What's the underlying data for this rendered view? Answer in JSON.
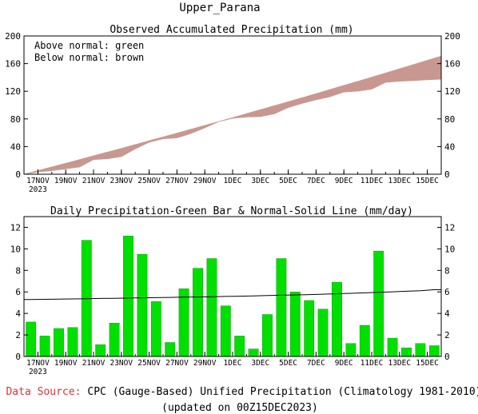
{
  "header": {
    "title": "Upper_Parana"
  },
  "footer": {
    "source_label": "Data Source:",
    "source_text": "CPC (Gauge-Based) Unified Precipitation (Climatology 1981-2010)",
    "updated": "(updated on 00Z15DEC2023)"
  },
  "colors": {
    "above_normal": "#c89890",
    "bar": "#00e000",
    "source_label": "#e03030",
    "axis": "#000000"
  },
  "chart_data": [
    {
      "type": "area",
      "title": "Observed Accumulated Precipitation (mm)",
      "annotations": [
        "Above normal: green",
        "Below normal: brown"
      ],
      "xlabel": "",
      "ylabel": "",
      "x_start_date": "2023-11-16",
      "x_tick_labels": [
        "17NOV",
        "19NOV",
        "21NOV",
        "23NOV",
        "25NOV",
        "27NOV",
        "29NOV",
        "1DEC",
        "3DEC",
        "5DEC",
        "7DEC",
        "9DEC",
        "11DEC",
        "13DEC",
        "15DEC"
      ],
      "x_tick_year": "2023",
      "ylim": [
        0,
        200
      ],
      "yticks": [
        0,
        40,
        80,
        120,
        160,
        200
      ],
      "grid": false,
      "series": [
        {
          "name": "Observed",
          "values": [
            3.2,
            5.1,
            7.7,
            10.4,
            21.2,
            22.3,
            25.4,
            36.6,
            46.1,
            51.2,
            52.5,
            58.8,
            67.0,
            76.1,
            80.8,
            82.7,
            83.4,
            87.3,
            96.4,
            102.4,
            107.6,
            112.0,
            118.9,
            120.1,
            123.0,
            132.8,
            134.5,
            135.3,
            136.5,
            137.5
          ]
        },
        {
          "name": "Normal",
          "values": [
            5.3,
            10.6,
            15.9,
            21.3,
            26.7,
            32.1,
            37.5,
            43.0,
            48.5,
            54.0,
            59.5,
            65.1,
            70.7,
            76.3,
            82.0,
            87.7,
            93.4,
            99.2,
            105.0,
            110.8,
            116.7,
            122.6,
            128.5,
            134.5,
            140.5,
            146.5,
            152.6,
            158.7,
            164.8,
            171.0
          ]
        }
      ]
    },
    {
      "type": "bar",
      "title": "Daily Precipitation-Green Bar & Normal-Solid Line (mm/day)",
      "xlabel": "",
      "ylabel": "",
      "x_start_date": "2023-11-16",
      "x_tick_labels": [
        "17NOV",
        "19NOV",
        "21NOV",
        "23NOV",
        "25NOV",
        "27NOV",
        "29NOV",
        "1DEC",
        "3DEC",
        "5DEC",
        "7DEC",
        "9DEC",
        "11DEC",
        "13DEC",
        "15DEC"
      ],
      "x_tick_year": "2023",
      "ylim": [
        0,
        13
      ],
      "yticks": [
        0,
        2,
        4,
        6,
        8,
        10,
        12
      ],
      "grid": false,
      "series": [
        {
          "name": "Observed",
          "values": [
            3.2,
            1.9,
            2.6,
            2.7,
            10.8,
            1.1,
            3.1,
            11.2,
            9.5,
            5.1,
            1.3,
            6.3,
            8.2,
            9.1,
            4.7,
            1.9,
            0.7,
            3.9,
            9.1,
            6.0,
            5.2,
            4.4,
            6.9,
            1.2,
            2.9,
            9.8,
            1.7,
            0.8,
            1.2,
            1.0
          ]
        },
        {
          "name": "Normal",
          "values": [
            5.3,
            5.31,
            5.33,
            5.35,
            5.37,
            5.39,
            5.41,
            5.43,
            5.45,
            5.47,
            5.49,
            5.51,
            5.53,
            5.56,
            5.58,
            5.6,
            5.63,
            5.66,
            5.69,
            5.72,
            5.75,
            5.79,
            5.83,
            5.87,
            5.91,
            5.96,
            6.01,
            6.06,
            6.11,
            6.2
          ]
        }
      ]
    }
  ]
}
